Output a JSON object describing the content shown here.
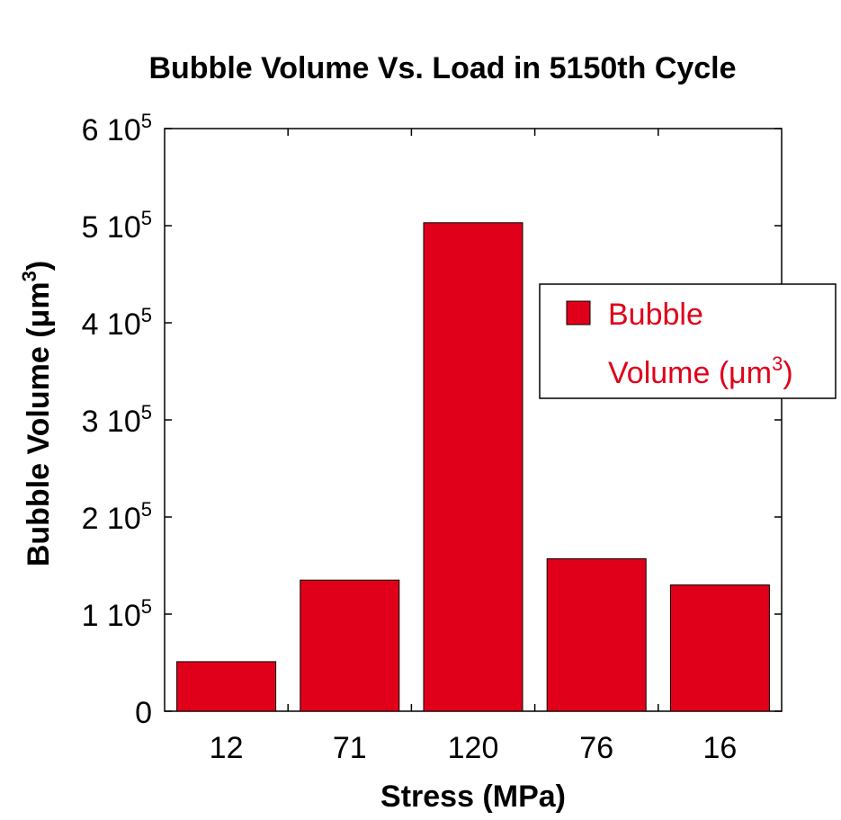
{
  "chart_data": {
    "type": "bar",
    "title": "Bubble Volume Vs. Load in 5150th Cycle",
    "xlabel": "Stress (MPa)",
    "ylabel": {
      "main": "Bubble Volume (μm",
      "sup": "3",
      "close": ")"
    },
    "categories": [
      "12",
      "71",
      "120",
      "76",
      "16"
    ],
    "series": [
      {
        "name": "Bubble Volume (μm3)",
        "name_parts": {
          "line1": "Bubble",
          "line2": "Volume (μm",
          "sup": "3",
          "close": ")"
        },
        "values": [
          51000,
          135000,
          503000,
          157000,
          130000
        ],
        "color": "#e0001a"
      }
    ],
    "ylim": [
      0,
      600000
    ],
    "yticks": [
      {
        "value": 0,
        "mantissa": "0",
        "exp": ""
      },
      {
        "value": 100000,
        "mantissa": "1 10",
        "exp": "5"
      },
      {
        "value": 200000,
        "mantissa": "2 10",
        "exp": "5"
      },
      {
        "value": 300000,
        "mantissa": "3 10",
        "exp": "5"
      },
      {
        "value": 400000,
        "mantissa": "4 10",
        "exp": "5"
      },
      {
        "value": 500000,
        "mantissa": "5 10",
        "exp": "5"
      },
      {
        "value": 600000,
        "mantissa": "6 10",
        "exp": "5"
      }
    ],
    "grid": false,
    "legend_position": "right"
  }
}
